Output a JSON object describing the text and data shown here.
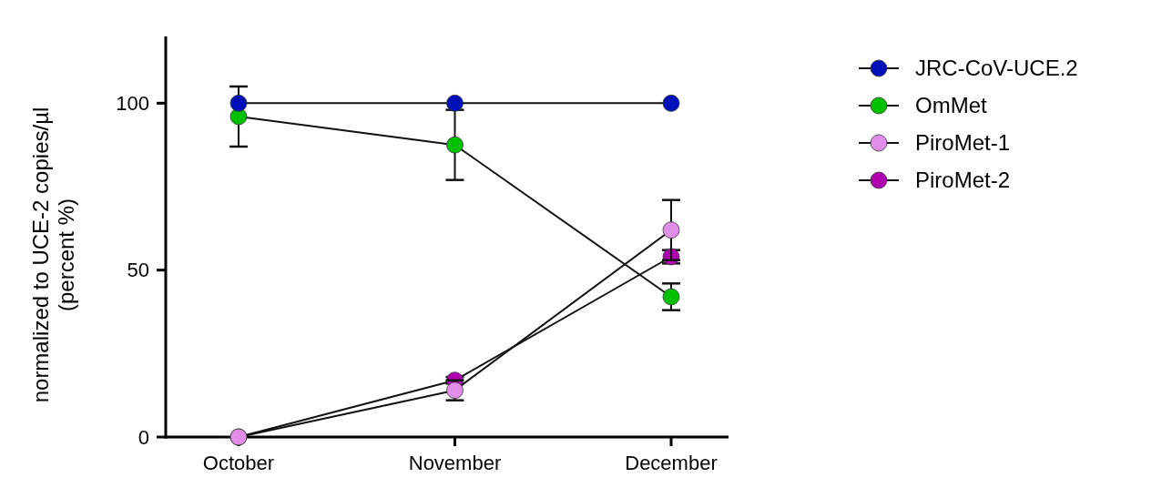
{
  "chart_data": {
    "type": "line",
    "ylabel": "normalized to UCE-2 copies/µl\n(percent %)",
    "categories": [
      "October",
      "November",
      "December"
    ],
    "series": [
      {
        "name": "JRC-CoV-UCE.2",
        "color": "#0010b8",
        "values": [
          100,
          100,
          100
        ]
      },
      {
        "name": "OmMet",
        "color": "#00c000",
        "values": [
          96,
          87.5,
          42
        ],
        "errors": [
          9,
          10.5,
          4
        ]
      },
      {
        "name": "PiroMet-1",
        "color": "#e08ee8",
        "values": [
          0,
          14,
          62
        ],
        "errors": [
          null,
          3,
          9
        ]
      },
      {
        "name": "PiroMet-2",
        "color": "#b000b0",
        "values": [
          0,
          17,
          54
        ],
        "errors": [
          null,
          1,
          2
        ]
      }
    ],
    "ylim": [
      0,
      120
    ],
    "yticks": [
      0,
      50,
      100
    ],
    "marker": "circle",
    "legend": "top right",
    "grid": false
  }
}
